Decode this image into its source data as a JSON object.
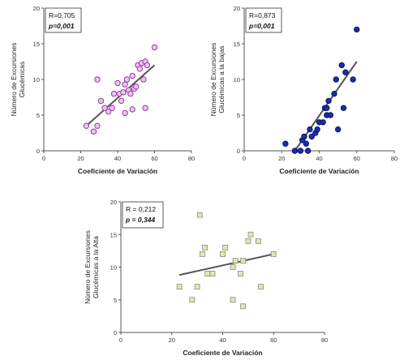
{
  "chart_data": [
    {
      "type": "scatter",
      "id": "c1",
      "xlabel": "Coeficiente de Variación",
      "ylabel_lines": [
        "Número de Excursiones",
        "Glucémicas"
      ],
      "xlim": [
        0,
        80
      ],
      "ylim": [
        0,
        20
      ],
      "xticks": [
        0,
        20,
        40,
        60,
        80
      ],
      "yticks": [
        0,
        5,
        10,
        15,
        20
      ],
      "stats": [
        "R=0,705",
        "p=0,001"
      ],
      "marker": "circle",
      "marker_fill": "#e8c6ec",
      "marker_stroke": "#9b3aa8",
      "fit": [
        [
          23,
          3.5
        ],
        [
          60,
          12
        ]
      ],
      "points": [
        [
          23,
          3.5
        ],
        [
          27,
          2.7
        ],
        [
          29,
          3.5
        ],
        [
          29,
          10
        ],
        [
          31,
          7
        ],
        [
          33,
          6
        ],
        [
          35,
          5.5
        ],
        [
          37,
          6
        ],
        [
          38,
          8
        ],
        [
          40,
          9.5
        ],
        [
          41,
          8
        ],
        [
          42,
          7
        ],
        [
          43,
          8.2
        ],
        [
          44,
          9.3
        ],
        [
          45,
          10
        ],
        [
          46,
          8.5
        ],
        [
          47,
          8
        ],
        [
          48,
          10.5
        ],
        [
          49,
          8.7
        ],
        [
          50,
          9
        ],
        [
          51,
          12
        ],
        [
          52,
          11.5
        ],
        [
          53,
          12.3
        ],
        [
          54,
          10
        ],
        [
          55,
          12.5
        ],
        [
          56,
          12
        ],
        [
          44,
          5.3
        ],
        [
          48,
          5.8
        ],
        [
          55,
          6
        ],
        [
          60,
          14.5
        ]
      ]
    },
    {
      "type": "scatter",
      "id": "c2",
      "xlabel": "Coeficiente de Variación",
      "ylabel_lines": [
        "Número de Excursiones",
        "Glucémicas a la bajas"
      ],
      "xlim": [
        0,
        80
      ],
      "ylim": [
        0,
        20
      ],
      "xticks": [
        0,
        20,
        40,
        60,
        80
      ],
      "yticks": [
        0,
        5,
        10,
        15,
        20
      ],
      "stats": [
        "R=0,873",
        "p=0,001"
      ],
      "marker": "circle",
      "marker_fill": "#1c2fa8",
      "marker_stroke": "#0c146b",
      "fit": [
        [
          27,
          0
        ],
        [
          60,
          12.5
        ]
      ],
      "points": [
        [
          22,
          1
        ],
        [
          27,
          0
        ],
        [
          30,
          0
        ],
        [
          31,
          1.5
        ],
        [
          32,
          2
        ],
        [
          33,
          1
        ],
        [
          34,
          0
        ],
        [
          35,
          3
        ],
        [
          36,
          2
        ],
        [
          38,
          2.5
        ],
        [
          39,
          3
        ],
        [
          40,
          4
        ],
        [
          42,
          4
        ],
        [
          43,
          6
        ],
        [
          44,
          6
        ],
        [
          44,
          5
        ],
        [
          45,
          7
        ],
        [
          46,
          5
        ],
        [
          48,
          8
        ],
        [
          49,
          10
        ],
        [
          50,
          3
        ],
        [
          52,
          12
        ],
        [
          53,
          6
        ],
        [
          54,
          11
        ],
        [
          58,
          10
        ],
        [
          60,
          17
        ]
      ]
    },
    {
      "type": "scatter",
      "id": "c3",
      "xlabel": "Coeficiente de Variación",
      "ylabel_lines": [
        "Número de Excursiones",
        "Glucémicas a la Alta"
      ],
      "xlim": [
        0,
        80
      ],
      "ylim": [
        0,
        20
      ],
      "xticks": [
        0,
        20,
        40,
        60,
        80
      ],
      "yticks": [
        0,
        5,
        10,
        15,
        20
      ],
      "stats": [
        "R = 0,212",
        "p = 0,344"
      ],
      "marker": "square",
      "marker_fill": "#e6e6a8",
      "marker_stroke": "#8a8a8a",
      "fit": [
        [
          23,
          8.8
        ],
        [
          60,
          12
        ]
      ],
      "points": [
        [
          23,
          7
        ],
        [
          28,
          5
        ],
        [
          30,
          7
        ],
        [
          31,
          18
        ],
        [
          32,
          12
        ],
        [
          33,
          13
        ],
        [
          34,
          9
        ],
        [
          36,
          9
        ],
        [
          40,
          12
        ],
        [
          41,
          13
        ],
        [
          44,
          10
        ],
        [
          44,
          5
        ],
        [
          45,
          11
        ],
        [
          47,
          9
        ],
        [
          48,
          4
        ],
        [
          48,
          11
        ],
        [
          50,
          14
        ],
        [
          51,
          15
        ],
        [
          54,
          14
        ],
        [
          55,
          7
        ],
        [
          60,
          12
        ]
      ]
    }
  ]
}
